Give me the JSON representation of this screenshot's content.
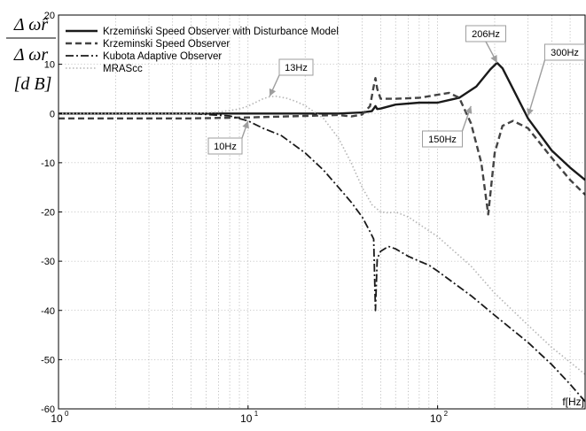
{
  "chart_data": {
    "type": "line",
    "xscale": "log",
    "xlim": [
      1,
      600
    ],
    "ylim": [
      -60,
      20
    ],
    "grid": true,
    "legend_position": "top-left",
    "xlabel": "f[Hz]",
    "ylabel": {
      "numerator": "Δ ω̂r",
      "denominator": "Δ ωr",
      "unit": "[d B]"
    },
    "x_ticks": [
      {
        "value": 1,
        "label": "10",
        "exp": "0"
      },
      {
        "value": 10,
        "label": "10",
        "exp": "1"
      },
      {
        "value": 100,
        "label": "10",
        "exp": "2"
      }
    ],
    "y_ticks": [
      {
        "value": 20,
        "label": "20"
      },
      {
        "value": 10,
        "label": "10"
      },
      {
        "value": 0,
        "label": "0"
      },
      {
        "value": -10,
        "label": "-10"
      },
      {
        "value": -20,
        "label": "-20"
      },
      {
        "value": -30,
        "label": "-30"
      },
      {
        "value": -40,
        "label": "-40"
      },
      {
        "value": -50,
        "label": "-50"
      },
      {
        "value": -60,
        "label": "-60"
      }
    ],
    "series": [
      {
        "name": "Krzemiński Speed Observer with Disturbance Model",
        "style": "solid",
        "color": "#1a1a1a",
        "width": 2.4,
        "x": [
          1,
          5,
          10,
          20,
          30,
          40,
          45,
          47,
          48,
          50,
          60,
          80,
          100,
          130,
          160,
          190,
          206,
          220,
          250,
          300,
          400,
          500,
          600
        ],
        "y": [
          0,
          0,
          0,
          0,
          0,
          0.2,
          0.5,
          1.5,
          0.9,
          1.0,
          1.8,
          2.2,
          2.2,
          3.2,
          5.5,
          9.0,
          10.3,
          9.2,
          5.0,
          -1.0,
          -7.5,
          -11.0,
          -13.5
        ]
      },
      {
        "name": "Krzeminski Speed Observer",
        "style": "dash",
        "color": "#444444",
        "width": 2.4,
        "x": [
          1,
          5,
          10,
          20,
          30,
          35,
          40,
          44,
          46,
          47,
          48,
          50,
          60,
          80,
          100,
          115,
          130,
          150,
          170,
          185,
          200,
          220,
          250,
          300,
          400,
          500,
          600
        ],
        "y": [
          -1,
          -1,
          -0.8,
          -0.5,
          -0.3,
          -0.6,
          -0.2,
          1.5,
          5.5,
          7.2,
          5.0,
          3.0,
          3.0,
          3.2,
          3.8,
          4.2,
          3.2,
          -2.0,
          -10.0,
          -20.5,
          -8.0,
          -2.5,
          -1.5,
          -3.0,
          -9.0,
          -13.5,
          -16.5
        ]
      },
      {
        "name": "Kubota Adaptive Observer",
        "style": "dashdot",
        "color": "#1a1a1a",
        "width": 1.8,
        "x": [
          1,
          3,
          5,
          8,
          10,
          12,
          15,
          20,
          25,
          30,
          35,
          40,
          44,
          46,
          47,
          48,
          50,
          55,
          60,
          70,
          80,
          90,
          100,
          150,
          200,
          300,
          400,
          500,
          600
        ],
        "y": [
          0,
          0,
          0,
          -0.5,
          -1.5,
          -3.0,
          -4.5,
          -8.0,
          -11.5,
          -15.0,
          -18.0,
          -21.0,
          -24.0,
          -25.5,
          -40.0,
          -29.5,
          -28.0,
          -27.0,
          -27.5,
          -29.0,
          -30.0,
          -30.8,
          -32.0,
          -37.0,
          -41.0,
          -46.5,
          -51.0,
          -55.0,
          -58.5
        ]
      },
      {
        "name": "MRAScc",
        "style": "dot",
        "color": "#b5b5b5",
        "width": 1.6,
        "x": [
          1,
          3,
          5,
          7,
          9,
          10,
          11,
          12,
          13,
          14,
          16,
          18,
          20,
          22,
          25,
          30,
          35,
          40,
          45,
          50,
          55,
          60,
          70,
          80,
          100,
          150,
          200,
          300,
          400,
          500,
          600
        ],
        "y": [
          0,
          0,
          0,
          0.3,
          0.9,
          1.5,
          2.3,
          3.0,
          3.4,
          3.5,
          3.1,
          2.4,
          1.6,
          0.5,
          -1.0,
          -5.0,
          -10.0,
          -15.0,
          -18.5,
          -20.0,
          -20.2,
          -20.0,
          -21.0,
          -22.5,
          -25.0,
          -31.0,
          -36.5,
          -43.0,
          -47.5,
          -50.5,
          -53.0
        ]
      }
    ],
    "annotations": [
      {
        "text": "13Hz",
        "point": [
          13,
          3.5
        ]
      },
      {
        "text": "10Hz",
        "point": [
          10,
          -1.5
        ]
      },
      {
        "text": "206Hz",
        "point": [
          206,
          10.3
        ]
      },
      {
        "text": "300Hz",
        "point": [
          300,
          -0.5
        ]
      },
      {
        "text": "150Hz",
        "point": [
          150,
          1.5
        ]
      }
    ]
  }
}
